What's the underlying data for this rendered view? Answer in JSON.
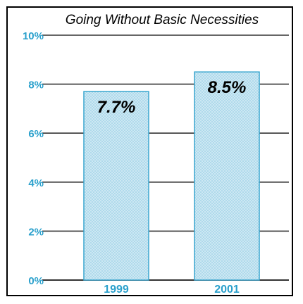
{
  "chart_data": {
    "type": "bar",
    "title": "Going Without Basic Necessities",
    "categories": [
      "1999",
      "2001"
    ],
    "values": [
      7.7,
      8.5
    ],
    "data_labels": [
      "7.7%",
      "8.5%"
    ],
    "xlabel": "",
    "ylabel": "",
    "ylim": [
      0,
      10
    ],
    "yticks": [
      {
        "value": 0,
        "label": "0%"
      },
      {
        "value": 2,
        "label": "2%"
      },
      {
        "value": 4,
        "label": "4%"
      },
      {
        "value": 6,
        "label": "6%"
      },
      {
        "value": 8,
        "label": "8%"
      },
      {
        "value": 10,
        "label": "10%"
      }
    ],
    "grid": true,
    "legend": "none"
  },
  "colors": {
    "bar_fill": "#cde8f3",
    "bar_stroke": "#3aa6cf",
    "tick_label": "#2aa0cc",
    "gridline": "#333333",
    "frame": "#000000",
    "title": "#000000",
    "data_label": "#000000"
  }
}
